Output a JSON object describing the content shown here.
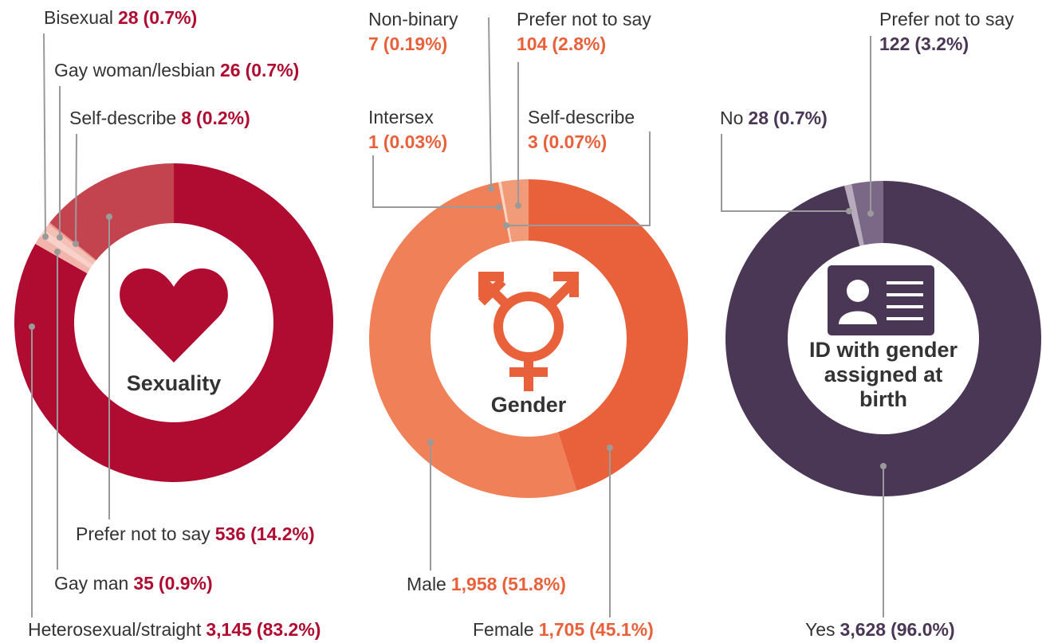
{
  "chart_data": [
    {
      "type": "pie",
      "title": [
        "Sexuality"
      ],
      "categories": [
        "Heterosexual/straight",
        "Gay man",
        "Gay woman/lesbian",
        "Bisexual",
        "Self-describe",
        "Prefer not to say"
      ],
      "values": [
        3145,
        35,
        26,
        28,
        8,
        536
      ],
      "value_labels": [
        "3,145",
        "35",
        "26",
        "28",
        "8",
        "536"
      ],
      "percentages": [
        83.2,
        0.9,
        0.7,
        0.7,
        0.2,
        14.2
      ],
      "percentage_labels": [
        "(83.2%)",
        "(0.9%)",
        "(0.7%)",
        "(0.7%)",
        "(0.2%)",
        "(14.2%)"
      ],
      "colors": [
        "#b00b30",
        "#f2b5ab",
        "#f8d2ca",
        "#f4c0b6",
        "#ec9a8f",
        "#c3444f"
      ],
      "label_color": "#b00b30"
    },
    {
      "type": "pie",
      "title": [
        "Gender"
      ],
      "categories": [
        "Female",
        "Male",
        "Intersex",
        "Self-describe",
        "Non-binary",
        "Prefer not to say"
      ],
      "values": [
        1705,
        1958,
        1,
        3,
        7,
        104
      ],
      "value_labels": [
        "1,705",
        "1,958",
        "1",
        "3",
        "7",
        "104"
      ],
      "percentages": [
        45.1,
        51.8,
        0.03,
        0.07,
        0.19,
        2.8
      ],
      "percentage_labels": [
        "(45.1%)",
        "(51.8%)",
        "(0.03%)",
        "(0.07%)",
        "(0.19%)",
        "(2.8%)"
      ],
      "colors": [
        "#e9613b",
        "#ef8058",
        "#fde2d6",
        "#f9c6b0",
        "#fbd6c6",
        "#f29b79"
      ],
      "label_color": "#e9613b"
    },
    {
      "type": "pie",
      "title": [
        "ID with gender",
        "assigned at",
        "birth"
      ],
      "categories": [
        "Yes",
        "No",
        "Prefer not to say"
      ],
      "values": [
        3628,
        28,
        122
      ],
      "value_labels": [
        "3,628",
        "28",
        "122"
      ],
      "percentages": [
        96.0,
        0.7,
        3.2
      ],
      "percentage_labels": [
        "(96.0%)",
        "(0.7%)",
        "(3.2%)"
      ],
      "colors": [
        "#4a3655",
        "#b8abbd",
        "#7b6786"
      ],
      "label_color": "#4a3655"
    }
  ]
}
